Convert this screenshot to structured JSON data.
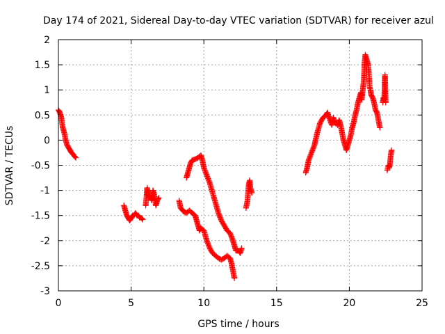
{
  "chart_data": {
    "type": "scatter",
    "title": "Day 174 of 2021, Sidereal Day-to-day VTEC variation (SDTVAR) for receiver azul",
    "xlabel": "GPS time / hours",
    "ylabel": "SDTVAR / TECUs",
    "xlim": [
      0,
      25
    ],
    "ylim": [
      -3,
      2
    ],
    "xticks": [
      0,
      5,
      10,
      15,
      20,
      25
    ],
    "xtick_labels": [
      "0",
      "5",
      "10",
      "15",
      "20",
      "25"
    ],
    "yticks": [
      -3,
      -2.5,
      -2,
      -1.5,
      -1,
      -0.5,
      0,
      0.5,
      1,
      1.5,
      2
    ],
    "ytick_labels": [
      "-3",
      "-2.5",
      "-2",
      "-1.5",
      "-1",
      "-0.5",
      "0",
      "0.5",
      "1",
      "1.5",
      "2"
    ],
    "grid": true,
    "marker": "+",
    "marker_color": "#ff0000",
    "series": [
      {
        "name": "SDTVAR",
        "segments": [
          [
            [
              0.0,
              0.6
            ],
            [
              0.1,
              0.55
            ],
            [
              0.2,
              0.45
            ],
            [
              0.3,
              0.25
            ],
            [
              0.4,
              0.15
            ],
            [
              0.5,
              0.0
            ],
            [
              0.6,
              -0.1
            ],
            [
              0.7,
              -0.15
            ],
            [
              0.8,
              -0.2
            ],
            [
              0.9,
              -0.25
            ],
            [
              1.0,
              -0.28
            ],
            [
              1.1,
              -0.32
            ],
            [
              1.2,
              -0.35
            ]
          ],
          [
            [
              4.5,
              -1.3
            ],
            [
              4.6,
              -1.4
            ],
            [
              4.7,
              -1.5
            ],
            [
              4.8,
              -1.55
            ],
            [
              4.9,
              -1.6
            ],
            [
              5.0,
              -1.55
            ],
            [
              5.1,
              -1.5
            ],
            [
              5.2,
              -1.5
            ],
            [
              5.3,
              -1.45
            ],
            [
              5.4,
              -1.5
            ],
            [
              5.5,
              -1.5
            ],
            [
              5.6,
              -1.55
            ],
            [
              5.7,
              -1.55
            ],
            [
              5.8,
              -1.58
            ]
          ],
          [
            [
              6.0,
              -1.3
            ],
            [
              6.05,
              -1.15
            ],
            [
              6.1,
              -0.95
            ],
            [
              6.15,
              -1.05
            ],
            [
              6.2,
              -1.15
            ],
            [
              6.3,
              -1.1
            ],
            [
              6.4,
              -1.2
            ],
            [
              6.5,
              -1.0
            ],
            [
              6.6,
              -1.1
            ],
            [
              6.7,
              -1.3
            ],
            [
              6.8,
              -1.2
            ],
            [
              6.9,
              -1.15
            ]
          ],
          [
            [
              8.3,
              -1.2
            ],
            [
              8.4,
              -1.35
            ],
            [
              8.6,
              -1.42
            ],
            [
              8.8,
              -1.45
            ],
            [
              9.0,
              -1.4
            ],
            [
              9.2,
              -1.45
            ],
            [
              9.4,
              -1.5
            ],
            [
              9.5,
              -1.6
            ],
            [
              9.6,
              -1.7
            ],
            [
              9.7,
              -1.8
            ],
            [
              9.8,
              -1.75
            ],
            [
              10.0,
              -1.8
            ],
            [
              10.2,
              -2.0
            ],
            [
              10.4,
              -2.15
            ],
            [
              10.6,
              -2.25
            ],
            [
              10.8,
              -2.3
            ],
            [
              11.0,
              -2.35
            ],
            [
              11.2,
              -2.38
            ],
            [
              11.4,
              -2.35
            ],
            [
              11.6,
              -2.3
            ],
            [
              11.8,
              -2.35
            ],
            [
              11.9,
              -2.45
            ],
            [
              12.0,
              -2.6
            ],
            [
              12.1,
              -2.75
            ]
          ],
          [
            [
              8.8,
              -0.75
            ],
            [
              8.9,
              -0.65
            ],
            [
              9.0,
              -0.55
            ],
            [
              9.1,
              -0.45
            ],
            [
              9.2,
              -0.4
            ],
            [
              9.4,
              -0.38
            ],
            [
              9.6,
              -0.35
            ],
            [
              9.8,
              -0.3
            ],
            [
              9.9,
              -0.4
            ],
            [
              10.0,
              -0.55
            ],
            [
              10.2,
              -0.7
            ],
            [
              10.4,
              -0.85
            ],
            [
              10.6,
              -1.05
            ],
            [
              10.8,
              -1.25
            ],
            [
              11.0,
              -1.45
            ],
            [
              11.2,
              -1.6
            ],
            [
              11.4,
              -1.7
            ],
            [
              11.6,
              -1.8
            ],
            [
              11.8,
              -1.85
            ],
            [
              12.0,
              -2.0
            ],
            [
              12.1,
              -2.1
            ],
            [
              12.2,
              -2.2
            ],
            [
              12.4,
              -2.2
            ],
            [
              12.5,
              -2.25
            ],
            [
              12.6,
              -2.15
            ]
          ],
          [
            [
              12.9,
              -1.35
            ],
            [
              13.0,
              -1.2
            ],
            [
              13.05,
              -1.0
            ],
            [
              13.1,
              -0.85
            ],
            [
              13.15,
              -0.8
            ],
            [
              13.2,
              -0.95
            ],
            [
              13.3,
              -1.05
            ]
          ],
          [
            [
              17.0,
              -0.65
            ],
            [
              17.1,
              -0.55
            ],
            [
              17.2,
              -0.4
            ],
            [
              17.4,
              -0.25
            ],
            [
              17.6,
              -0.1
            ],
            [
              17.8,
              0.15
            ],
            [
              18.0,
              0.35
            ],
            [
              18.2,
              0.45
            ],
            [
              18.4,
              0.5
            ],
            [
              18.5,
              0.55
            ],
            [
              18.6,
              0.45
            ],
            [
              18.8,
              0.3
            ],
            [
              18.9,
              0.45
            ],
            [
              19.0,
              0.35
            ],
            [
              19.2,
              0.3
            ],
            [
              19.3,
              0.4
            ],
            [
              19.4,
              0.3
            ],
            [
              19.5,
              0.15
            ],
            [
              19.6,
              0.0
            ],
            [
              19.7,
              -0.1
            ],
            [
              19.8,
              -0.2
            ],
            [
              19.9,
              -0.1
            ],
            [
              20.0,
              0.0
            ],
            [
              20.1,
              0.1
            ],
            [
              20.2,
              0.25
            ],
            [
              20.3,
              0.35
            ],
            [
              20.4,
              0.5
            ],
            [
              20.5,
              0.6
            ],
            [
              20.6,
              0.75
            ],
            [
              20.7,
              0.85
            ],
            [
              20.8,
              0.95
            ],
            [
              20.85,
              0.8
            ],
            [
              21.0,
              1.2
            ],
            [
              21.05,
              1.55
            ],
            [
              21.1,
              1.7
            ],
            [
              21.2,
              1.6
            ],
            [
              21.3,
              1.5
            ],
            [
              21.35,
              1.3
            ],
            [
              21.4,
              1.05
            ],
            [
              21.45,
              1.0
            ],
            [
              21.5,
              0.9
            ],
            [
              21.6,
              0.85
            ],
            [
              21.7,
              0.75
            ],
            [
              21.8,
              0.6
            ],
            [
              21.9,
              0.55
            ],
            [
              22.0,
              0.4
            ],
            [
              22.1,
              0.25
            ]
          ],
          [
            [
              22.3,
              0.75
            ],
            [
              22.35,
              0.85
            ],
            [
              22.4,
              0.8
            ],
            [
              22.45,
              1.3
            ],
            [
              22.5,
              0.75
            ]
          ],
          [
            [
              22.6,
              -0.6
            ],
            [
              22.65,
              -0.55
            ],
            [
              22.7,
              -0.5
            ],
            [
              22.75,
              -0.55
            ],
            [
              22.8,
              -0.45
            ],
            [
              22.85,
              -0.3
            ],
            [
              22.9,
              -0.2
            ]
          ]
        ]
      }
    ]
  }
}
